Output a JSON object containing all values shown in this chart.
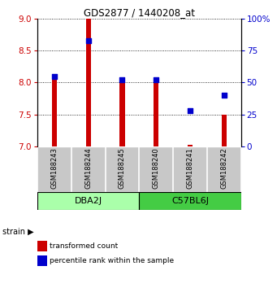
{
  "title": "GDS2877 / 1440208_at",
  "samples": [
    "GSM188243",
    "GSM188244",
    "GSM188245",
    "GSM188240",
    "GSM188241",
    "GSM188242"
  ],
  "red_values": [
    8.05,
    9.0,
    8.0,
    8.05,
    7.02,
    7.5
  ],
  "red_base": 7.0,
  "blue_percentiles": [
    55,
    83,
    52,
    52,
    28,
    40
  ],
  "ylim_left": [
    7.0,
    9.0
  ],
  "ylim_right": [
    0,
    100
  ],
  "left_ticks": [
    7.0,
    7.5,
    8.0,
    8.5,
    9.0
  ],
  "right_ticks": [
    0,
    25,
    50,
    75,
    100
  ],
  "right_tick_labels": [
    "0",
    "25",
    "50",
    "75",
    "100%"
  ],
  "groups": [
    {
      "label": "DBA2J",
      "indices": [
        0,
        1,
        2
      ],
      "color": "#AAFFAA"
    },
    {
      "label": "C57BL6J",
      "indices": [
        3,
        4,
        5
      ],
      "color": "#44CC44"
    }
  ],
  "bar_color": "#CC0000",
  "dot_color": "#0000CC",
  "bar_width": 0.15,
  "dot_size": 25,
  "background_color": "#FFFFFF",
  "legend_red_label": "transformed count",
  "legend_blue_label": "percentile rank within the sample"
}
